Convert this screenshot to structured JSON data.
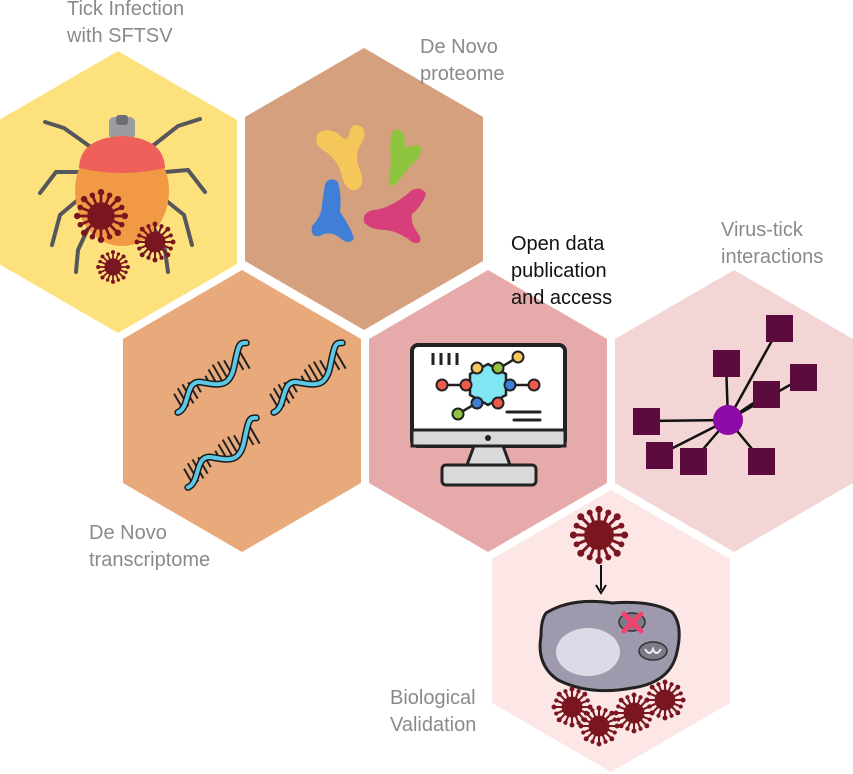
{
  "labels": {
    "tick_infection": [
      "Tick Infection",
      "with SFTSV"
    ],
    "proteome": [
      "De Novo",
      "proteome"
    ],
    "open_data": [
      "Open data",
      "publication",
      "and access"
    ],
    "virus_tick": [
      "Virus-tick",
      "interactions"
    ],
    "transcriptome": [
      "De Novo",
      "transcriptome"
    ],
    "validation": [
      "Biological",
      "Validation"
    ]
  },
  "colors": {
    "tick_hex": "#fde17c",
    "proteome_hex": "#d4a07e",
    "transcriptome_hex": "#e9aa7b",
    "open_data_hex": "#e7aaaa",
    "virus_tick_hex": "#f4d5d6",
    "validation_hex": "#fde6e6",
    "label_gray": "#8a8a8a",
    "label_dark": "#111111",
    "virus": "#7a1620",
    "network_node": "#5c0b3e",
    "network_hub": "#8e0aa6"
  },
  "icons": {
    "tick": "tick-icon",
    "proteins": "protein-fragments-icon",
    "dna": "dna-helix-icon",
    "monitor": "computer-monitor-icon",
    "network": "network-graph-icon",
    "cell": "infected-cell-icon"
  }
}
